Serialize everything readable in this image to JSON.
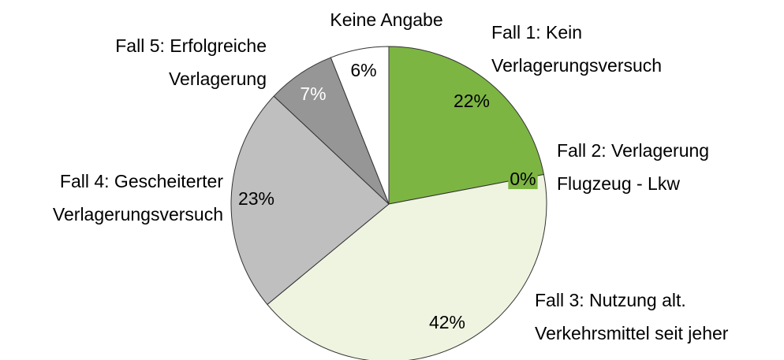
{
  "chart_data": {
    "type": "pie",
    "categories": [
      "Fall 1: Kein\nVerlagerungsversuch",
      "Fall 2: Verlagerung\nFlugzeug - Lkw",
      "Fall 3: Nutzung alt.\nVerkehrsmittel seit jeher",
      "Fall 4: Gescheiterter\nVerlagerungsversuch",
      "Fall 5: Erfolgreiche\nVerlagerung",
      "Keine Angabe"
    ],
    "values": [
      22,
      0,
      42,
      23,
      7,
      6
    ],
    "value_labels": [
      "22%",
      "0%",
      "42%",
      "23%",
      "7%",
      "6%"
    ],
    "colors": [
      "#7db543",
      "#7db543",
      "#eef4e0",
      "#bfbfbf",
      "#969696",
      "#ffffff"
    ]
  }
}
